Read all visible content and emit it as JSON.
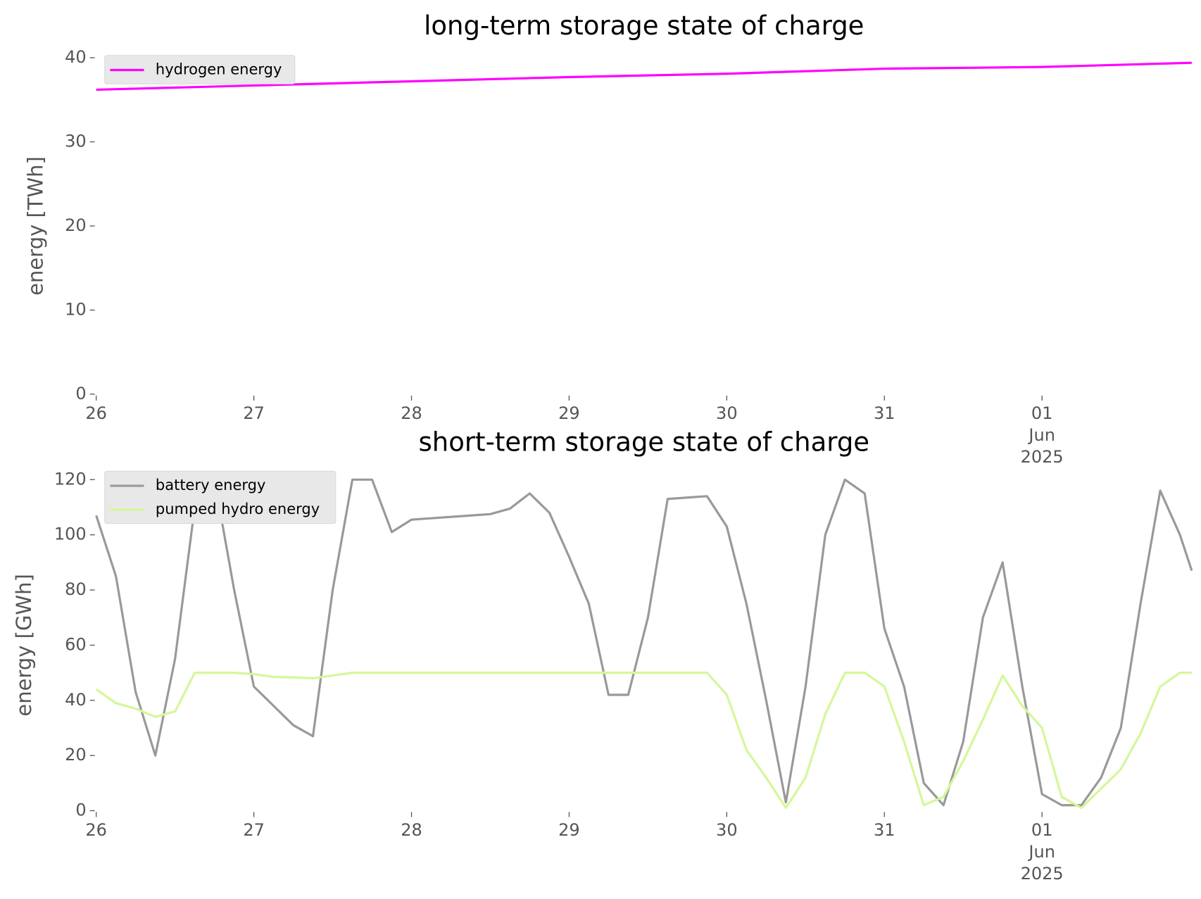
{
  "chart_data": [
    {
      "type": "line",
      "title": "long-term storage state of charge",
      "ylabel": "energy [TWh]",
      "x": [
        0,
        1,
        2,
        3,
        4,
        5,
        6,
        6.95
      ],
      "xlim": [
        0,
        6.95
      ],
      "xticks": [
        {
          "value": 0,
          "label": "26"
        },
        {
          "value": 1,
          "label": "27"
        },
        {
          "value": 2,
          "label": "28"
        },
        {
          "value": 3,
          "label": "29"
        },
        {
          "value": 4,
          "label": "30"
        },
        {
          "value": 5,
          "label": "31"
        },
        {
          "value": 6,
          "label": "01\nJun\n2025"
        }
      ],
      "ylim": [
        0,
        40
      ],
      "yticks": [
        0,
        10,
        20,
        30,
        40
      ],
      "legend": "upper left",
      "grid": false,
      "series": [
        {
          "name": "hydrogen energy",
          "color": "#ff00ff",
          "values": [
            36.2,
            36.7,
            37.2,
            37.7,
            38.1,
            38.7,
            38.9,
            39.4
          ]
        }
      ]
    },
    {
      "type": "line",
      "title": "short-term storage state of charge",
      "ylabel": "energy [GWh]",
      "x": [
        0,
        0.125,
        0.25,
        0.375,
        0.5,
        0.625,
        0.75,
        0.875,
        1,
        1.125,
        1.25,
        1.375,
        1.5,
        1.625,
        1.75,
        1.875,
        2,
        2.125,
        2.25,
        2.375,
        2.5,
        2.625,
        2.75,
        2.875,
        3,
        3.125,
        3.25,
        3.375,
        3.5,
        3.625,
        3.75,
        3.875,
        4,
        4.125,
        4.25,
        4.375,
        4.5,
        4.625,
        4.75,
        4.875,
        5,
        5.125,
        5.25,
        5.375,
        5.5,
        5.625,
        5.75,
        5.875,
        6,
        6.125,
        6.25,
        6.375,
        6.5,
        6.625,
        6.75,
        6.875,
        6.95
      ],
      "xlim": [
        0,
        6.95
      ],
      "xticks": [
        {
          "value": 0,
          "label": "26"
        },
        {
          "value": 1,
          "label": "27"
        },
        {
          "value": 2,
          "label": "28"
        },
        {
          "value": 3,
          "label": "29"
        },
        {
          "value": 4,
          "label": "30"
        },
        {
          "value": 5,
          "label": "31"
        },
        {
          "value": 6,
          "label": "01\nJun\n2025"
        }
      ],
      "ylim": [
        0,
        120
      ],
      "yticks": [
        0,
        20,
        40,
        60,
        80,
        100,
        120
      ],
      "legend": "upper left",
      "grid": false,
      "series": [
        {
          "name": "battery energy",
          "color": "#999999",
          "values": [
            107,
            85,
            43,
            20,
            55,
            110,
            120,
            80,
            45,
            38,
            31,
            27,
            80,
            120,
            120,
            101,
            105.5,
            106,
            106.5,
            107,
            107.5,
            109.5,
            115,
            108,
            92,
            75,
            42,
            42,
            70,
            113,
            113.5,
            114,
            103,
            75,
            40,
            3,
            45,
            100,
            120,
            115,
            66,
            45,
            10,
            2,
            25,
            70,
            90,
            45,
            6,
            2,
            2,
            12,
            30,
            75,
            116,
            100,
            87
          ]
        },
        {
          "name": "pumped hydro energy",
          "color": "#d4f79a",
          "values": [
            44,
            39,
            37,
            34,
            36,
            50,
            50,
            50,
            49.5,
            48.5,
            48.3,
            48,
            49,
            50,
            50,
            50,
            50,
            50,
            50,
            50,
            50,
            50,
            50,
            50,
            50,
            50,
            50,
            50,
            50,
            50,
            50,
            50,
            42,
            22,
            12,
            1,
            12,
            35,
            50,
            50,
            45,
            25,
            2,
            5,
            18,
            33,
            49,
            38,
            30,
            5,
            1,
            8,
            15,
            28,
            45,
            50,
            50
          ]
        }
      ]
    }
  ]
}
